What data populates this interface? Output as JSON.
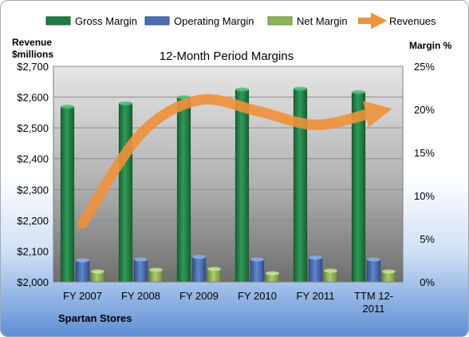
{
  "chart_data": {
    "type": "bar",
    "title": "12-Month Period Margins",
    "company": "Spartan Stores",
    "categories": [
      "FY 2007",
      "FY 2008",
      "FY 2009",
      "FY 2010",
      "FY 2011",
      "TTM 12-2011"
    ],
    "left_axis": {
      "label_line1": "Revenue",
      "label_line2": "$millions",
      "min": 2000,
      "max": 2700,
      "ticks": [
        "$2,000",
        "$2,100",
        "$2,200",
        "$2,300",
        "$2,400",
        "$2,500",
        "$2,600",
        "$2,700"
      ]
    },
    "right_axis": {
      "label": "Margin %",
      "min": 0,
      "max": 25,
      "ticks": [
        "0%",
        "5%",
        "10%",
        "15%",
        "20%",
        "25%"
      ]
    },
    "series": [
      {
        "name": "Gross Margin",
        "type": "bar",
        "axis": "right",
        "color": "#1f7a45",
        "values": [
          20.3,
          20.7,
          21.4,
          22.3,
          22.4,
          22.0
        ]
      },
      {
        "name": "Operating Margin",
        "type": "bar",
        "axis": "right",
        "color": "#4a6fb0",
        "values": [
          2.5,
          2.6,
          2.9,
          2.6,
          2.8,
          2.6
        ]
      },
      {
        "name": "Net Margin",
        "type": "bar",
        "axis": "right",
        "color": "#8fb35a",
        "values": [
          1.2,
          1.4,
          1.5,
          1.0,
          1.3,
          1.2
        ]
      },
      {
        "name": "Revenues",
        "type": "line",
        "axis": "left",
        "color": "#f0923a",
        "values": [
          2190,
          2480,
          2590,
          2555,
          2510,
          2550
        ]
      }
    ],
    "grid": true,
    "legend": "top"
  }
}
